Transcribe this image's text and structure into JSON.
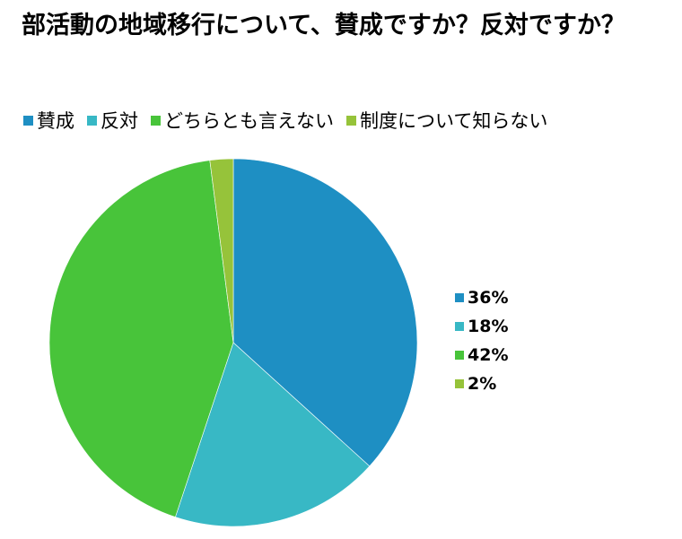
{
  "title": "部活動の地域移行について、賛成ですか？反対ですか？",
  "legend": [
    {
      "label": "賛成",
      "color": "#1E8FC3"
    },
    {
      "label": "反対",
      "color": "#38B8C5"
    },
    {
      "label": "どちらとも言えない",
      "color": "#48C43A"
    },
    {
      "label": "制度について知らない",
      "color": "#96C33A"
    }
  ],
  "value_legend": [
    {
      "label": "36%",
      "color": "#1E8FC3"
    },
    {
      "label": "18%",
      "color": "#38B8C5"
    },
    {
      "label": "42%",
      "color": "#48C43A"
    },
    {
      "label": "2%",
      "color": "#96C33A"
    }
  ],
  "chart_data": {
    "type": "pie",
    "title": "部活動の地域移行について、賛成ですか？反対ですか？",
    "categories": [
      "賛成",
      "反対",
      "どちらとも言えない",
      "制度について知らない"
    ],
    "values": [
      36,
      18,
      42,
      2
    ],
    "unit": "%",
    "colors": [
      "#1E8FC3",
      "#38B8C5",
      "#48C43A",
      "#96C33A"
    ],
    "start_angle": "12 o'clock, clockwise",
    "legend_position": "top (categories), right (percentages)"
  }
}
